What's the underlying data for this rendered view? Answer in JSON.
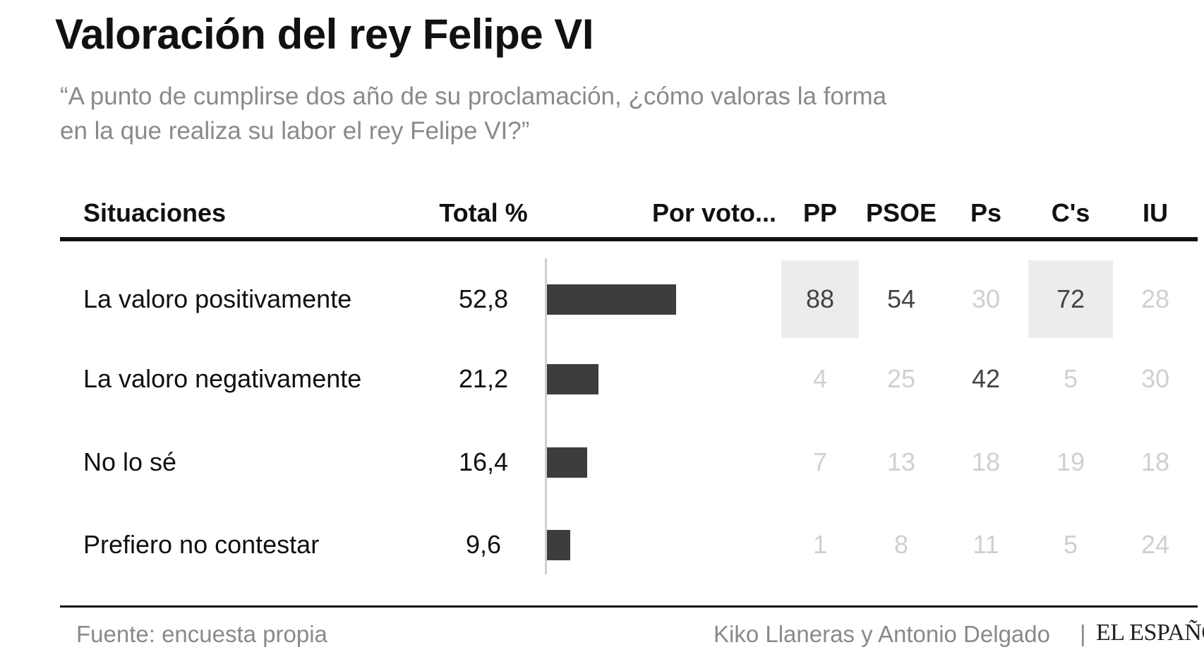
{
  "header": {
    "title": "Valoración del rey Felipe VI",
    "subtitle_line1": "“A punto de cumplirse dos año de su proclamación, ¿cómo valoras la forma",
    "subtitle_line2": "en la que realiza su labor el rey Felipe VI?”"
  },
  "table": {
    "col_situaciones": "Situaciones",
    "col_total": "Total %",
    "col_por_voto": "Por voto...",
    "parties": [
      "PP",
      "PSOE",
      "Ps",
      "C's",
      "IU"
    ]
  },
  "chart_data": {
    "type": "table",
    "columns": [
      "Situaciones",
      "Total %",
      "PP",
      "PSOE",
      "Ps",
      "C's",
      "IU"
    ],
    "bar_scale_max": 100,
    "rows": [
      {
        "label": "La valoro positivamente",
        "total": "52,8",
        "total_value": 52.8,
        "by_party": [
          "88",
          "54",
          "30",
          "72",
          "28"
        ],
        "emphasized": [
          0,
          1,
          3
        ],
        "highlighted": [
          0,
          3
        ]
      },
      {
        "label": "La valoro negativamente",
        "total": "21,2",
        "total_value": 21.2,
        "by_party": [
          "4",
          "25",
          "42",
          "5",
          "30"
        ],
        "emphasized": [
          2
        ],
        "highlighted": []
      },
      {
        "label": "No lo sé",
        "total": "16,4",
        "total_value": 16.4,
        "by_party": [
          "7",
          "13",
          "18",
          "19",
          "18"
        ],
        "emphasized": [],
        "highlighted": []
      },
      {
        "label": "Prefiero no contestar",
        "total": "9,6",
        "total_value": 9.6,
        "by_party": [
          "1",
          "8",
          "11",
          "5",
          "24"
        ],
        "emphasized": [],
        "highlighted": []
      }
    ],
    "colors": {
      "bar": "#3d3d3d",
      "emphasized_text": "#444444",
      "muted_text": "#d0d0d0",
      "highlight_cell": "#ececec"
    }
  },
  "footer": {
    "source": "Fuente: encuesta propia",
    "credit": "Kiko Llaneras y Antonio Delgado",
    "separator": "|",
    "logo_text": "EL ESPAÑOL"
  }
}
